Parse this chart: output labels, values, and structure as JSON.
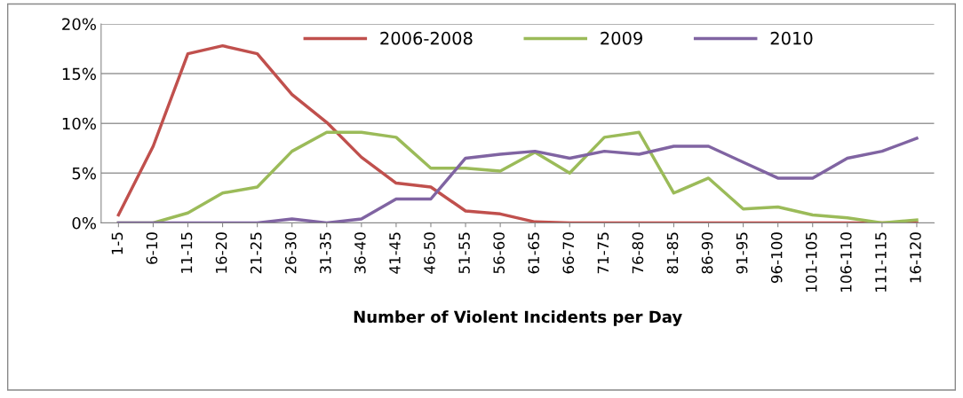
{
  "chart_data": {
    "type": "line",
    "xlabel": "Number of Violent Incidents per Day",
    "categories": [
      "1-5",
      "6-10",
      "11-15",
      "16-20",
      "21-25",
      "26-30",
      "31-35",
      "36-40",
      "41-45",
      "46-50",
      "51-55",
      "56-60",
      "61-65",
      "66-70",
      "71-75",
      "76-80",
      "81-85",
      "86-90",
      "91-95",
      "96-100",
      "101-105",
      "106-110",
      "111-115",
      "16-120"
    ],
    "series": [
      {
        "name": "2006-2008",
        "color": "#c0504d",
        "values": [
          0.8,
          7.7,
          17.0,
          17.8,
          17.0,
          12.9,
          10.1,
          6.6,
          4.0,
          3.6,
          1.2,
          0.9,
          0.1,
          0,
          0,
          0,
          0,
          0,
          0,
          0,
          0,
          0,
          0,
          0
        ]
      },
      {
        "name": "2009",
        "color": "#9bbb59",
        "values": [
          0,
          0,
          1.0,
          3.0,
          3.6,
          7.2,
          9.1,
          9.1,
          8.6,
          5.5,
          5.5,
          5.2,
          7.1,
          5.0,
          8.6,
          9.1,
          3.0,
          4.5,
          1.4,
          1.6,
          0.8,
          0.5,
          0,
          0.3
        ]
      },
      {
        "name": "2010",
        "color": "#8064a2",
        "values": [
          0,
          0,
          0,
          0,
          0,
          0.4,
          0,
          0.4,
          2.4,
          2.4,
          6.5,
          6.9,
          7.2,
          6.5,
          7.2,
          6.9,
          7.7,
          7.7,
          6.1,
          4.5,
          4.5,
          6.5,
          7.2,
          8.5
        ]
      }
    ],
    "ylim": [
      0,
      20
    ],
    "yticks": [
      {
        "value": 0,
        "label": "0%"
      },
      {
        "value": 5,
        "label": "5%"
      },
      {
        "value": 10,
        "label": "10%"
      },
      {
        "value": 15,
        "label": "15%"
      },
      {
        "value": 20,
        "label": "20%"
      }
    ],
    "grid": "y",
    "legend": "top",
    "marker": "none",
    "line_style": "solid"
  }
}
